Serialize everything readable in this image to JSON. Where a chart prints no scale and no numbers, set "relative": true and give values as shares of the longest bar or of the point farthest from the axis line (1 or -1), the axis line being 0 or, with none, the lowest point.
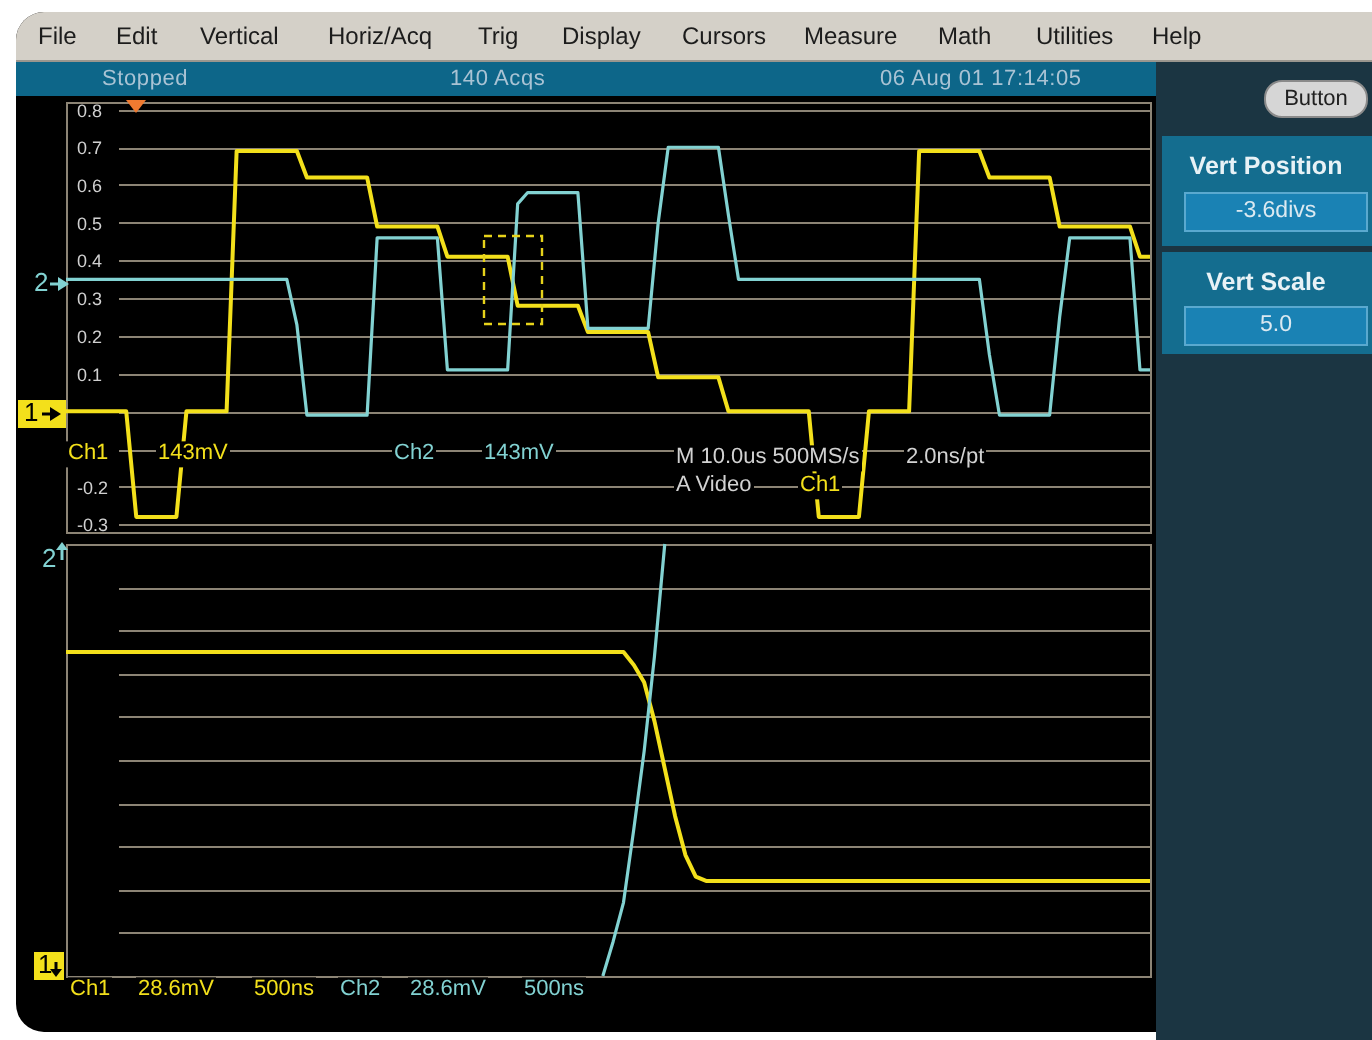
{
  "chart_data": [
    {
      "type": "line",
      "categories": [
        null,
        null,
        null,
        null,
        null,
        null,
        null,
        null,
        null,
        null,
        null,
        null,
        null,
        null,
        null,
        null,
        null,
        null,
        null,
        null,
        null,
        null,
        null,
        null,
        null,
        null,
        null,
        null,
        null,
        null,
        null,
        null,
        null,
        null,
        null,
        null,
        null,
        null,
        null,
        null,
        null,
        null,
        null,
        null,
        null,
        null,
        null,
        null,
        null,
        null,
        null,
        null,
        null,
        null,
        null,
        null,
        null,
        null,
        null,
        null,
        null,
        null,
        null,
        null,
        null,
        null,
        null,
        null,
        null,
        null,
        null,
        null,
        null,
        null,
        null,
        null,
        null,
        null,
        null,
        null,
        null,
        null,
        null,
        null,
        null,
        null,
        null,
        null,
        null,
        null,
        null,
        null,
        null,
        null,
        null,
        null,
        null,
        null,
        null,
        null,
        null,
        null,
        null,
        null,
        null,
        null,
        null,
        null,
        null
      ],
      "series": [
        {
          "name": "Ch1",
          "color": "#f3e01b",
          "values": [
            0,
            0,
            0,
            0,
            0,
            0,
            0,
            -0.28,
            -0.28,
            -0.28,
            -0.28,
            -0.28,
            0,
            0,
            0,
            0,
            0,
            0.69,
            0.69,
            0.69,
            0.69,
            0.69,
            0.69,
            0.69,
            0.62,
            0.62,
            0.62,
            0.62,
            0.62,
            0.62,
            0.62,
            0.49,
            0.49,
            0.49,
            0.49,
            0.49,
            0.49,
            0.49,
            0.41,
            0.41,
            0.41,
            0.41,
            0.41,
            0.41,
            0.41,
            0.28,
            0.28,
            0.28,
            0.28,
            0.28,
            0.28,
            0.28,
            0.21,
            0.21,
            0.21,
            0.21,
            0.21,
            0.21,
            0.21,
            0.09,
            0.09,
            0.09,
            0.09,
            0.09,
            0.09,
            0.09,
            0,
            0,
            0,
            0,
            0,
            0,
            0,
            0,
            0,
            -0.28,
            -0.28,
            -0.28,
            -0.28,
            -0.28,
            0,
            0,
            0,
            0,
            0,
            0.69,
            0.69,
            0.69,
            0.69,
            0.69,
            0.69,
            0.69,
            0.62,
            0.62,
            0.62,
            0.62,
            0.62,
            0.62,
            0.62,
            0.49,
            0.49,
            0.49,
            0.49,
            0.49,
            0.49,
            0.49,
            0.49,
            0.41,
            0.41
          ]
        },
        {
          "name": "Ch2",
          "color": "#82d2d2",
          "values": [
            0.35,
            0.35,
            0.35,
            0.35,
            0.35,
            0.35,
            0.35,
            0.35,
            0.35,
            0.35,
            0.35,
            0.35,
            0.35,
            0.35,
            0.35,
            0.35,
            0.35,
            0.35,
            0.35,
            0.35,
            0.35,
            0.35,
            0.35,
            0.23,
            -0.01,
            -0.01,
            -0.01,
            -0.01,
            -0.01,
            -0.01,
            -0.01,
            0.46,
            0.46,
            0.46,
            0.46,
            0.46,
            0.46,
            0.46,
            0.11,
            0.11,
            0.11,
            0.11,
            0.11,
            0.11,
            0.11,
            0.55,
            0.58,
            0.58,
            0.58,
            0.58,
            0.58,
            0.58,
            0.22,
            0.22,
            0.22,
            0.22,
            0.22,
            0.22,
            0.22,
            0.5,
            0.7,
            0.7,
            0.7,
            0.7,
            0.7,
            0.7,
            0.52,
            0.35,
            0.35,
            0.35,
            0.35,
            0.35,
            0.35,
            0.35,
            0.35,
            0.35,
            0.35,
            0.35,
            0.35,
            0.35,
            0.35,
            0.35,
            0.35,
            0.35,
            0.35,
            0.35,
            0.35,
            0.35,
            0.35,
            0.35,
            0.35,
            0.35,
            0.15,
            -0.01,
            -0.01,
            -0.01,
            -0.01,
            -0.01,
            -0.01,
            0.25,
            0.46,
            0.46,
            0.46,
            0.46,
            0.46,
            0.46,
            0.46,
            0.11,
            0.11
          ]
        }
      ],
      "ylim": [
        -0.32,
        0.82
      ],
      "yticks": [
        -0.3,
        -0.2,
        {
          "value": -0.1,
          "label": null
        },
        {
          "value": 0,
          "label": null
        },
        0.1,
        0.2,
        0.3,
        0.4,
        0.5,
        0.6,
        0.7,
        0.8
      ],
      "grid": "y",
      "annotations": [
        "File",
        "Edit",
        "Vertical",
        "Horiz/Acq",
        "Trig",
        "Display",
        "Cursors",
        "Measure",
        "Math",
        "Utilities",
        "Help",
        "Stopped",
        "140 Acqs",
        "06 Aug 01 17:14:05",
        "Button",
        "Vert Position",
        "-3.6divs",
        "Vert Scale",
        "5.0",
        "143mV",
        "143mV",
        "M 10.0us 500MS/s",
        "2.0ns/pt",
        "A Video",
        "Ch1",
        "2",
        "1"
      ]
    },
    {
      "type": "line",
      "relative": true,
      "categories": [
        null,
        null,
        null,
        null,
        null,
        null,
        null,
        null,
        null,
        null,
        null,
        null,
        null,
        null,
        null,
        null,
        null,
        null,
        null,
        null,
        null,
        null,
        null,
        null,
        null,
        null,
        null,
        null,
        null,
        null,
        null,
        null,
        null,
        null,
        null,
        null,
        null,
        null,
        null,
        null,
        null,
        null,
        null,
        null,
        null,
        null,
        null,
        null,
        null,
        null,
        null,
        null,
        null,
        null,
        null,
        null,
        null,
        null,
        null,
        null,
        null,
        null,
        null,
        null,
        null,
        null,
        null,
        null,
        null,
        null,
        null,
        null,
        null,
        null,
        null,
        null,
        null,
        null,
        null,
        null,
        null,
        null,
        null,
        null,
        null,
        null,
        null,
        null,
        null,
        null,
        null,
        null,
        null,
        null,
        null,
        null,
        null,
        null,
        null,
        null,
        null,
        null,
        null,
        null,
        null,
        null
      ],
      "series": [
        {
          "name": "Ch1",
          "color": "#f3e01b",
          "values": [
            0.75,
            0.75,
            0.75,
            0.75,
            0.75,
            0.75,
            0.75,
            0.75,
            0.75,
            0.75,
            0.75,
            0.75,
            0.75,
            0.75,
            0.75,
            0.75,
            0.75,
            0.75,
            0.75,
            0.75,
            0.75,
            0.75,
            0.75,
            0.75,
            0.75,
            0.75,
            0.75,
            0.75,
            0.75,
            0.75,
            0.75,
            0.75,
            0.75,
            0.75,
            0.75,
            0.75,
            0.75,
            0.75,
            0.75,
            0.75,
            0.75,
            0.75,
            0.75,
            0.75,
            0.75,
            0.75,
            0.75,
            0.75,
            0.75,
            0.75,
            0.75,
            0.75,
            0.75,
            0.75,
            0.75,
            0.72,
            0.68,
            0.59,
            0.48,
            0.37,
            0.28,
            0.23,
            0.22,
            0.22,
            0.22,
            0.22,
            0.22,
            0.22,
            0.22,
            0.22,
            0.22,
            0.22,
            0.22,
            0.22,
            0.22,
            0.22,
            0.22,
            0.22,
            0.22,
            0.22,
            0.22,
            0.22,
            0.22,
            0.22,
            0.22,
            0.22,
            0.22,
            0.22,
            0.22,
            0.22,
            0.22,
            0.22,
            0.22,
            0.22,
            0.22,
            0.22,
            0.22,
            0.22,
            0.22,
            0.22,
            0.22,
            0.22,
            0.22,
            0.22,
            0.22,
            0.22
          ]
        },
        {
          "name": "Ch2",
          "color": "#82d2d2",
          "values": [
            null,
            null,
            null,
            null,
            null,
            null,
            null,
            null,
            null,
            null,
            null,
            null,
            null,
            null,
            null,
            null,
            null,
            null,
            null,
            null,
            null,
            null,
            null,
            null,
            null,
            null,
            null,
            null,
            null,
            null,
            null,
            null,
            null,
            null,
            null,
            null,
            null,
            null,
            null,
            null,
            null,
            null,
            null,
            null,
            null,
            null,
            null,
            null,
            null,
            null,
            null,
            null,
            0,
            0.08,
            0.17,
            0.34,
            0.52,
            0.74,
            1,
            null,
            null,
            null,
            null,
            null,
            null,
            null,
            null,
            null,
            null,
            null,
            null,
            null,
            null,
            null,
            null,
            null,
            null,
            null,
            null,
            null,
            null,
            null,
            null,
            null,
            null,
            null,
            null,
            null,
            null,
            null,
            null,
            null,
            null,
            null,
            null,
            null,
            null,
            null,
            null,
            null,
            null,
            null,
            null,
            null,
            null,
            null
          ]
        }
      ],
      "grid": "y",
      "annotations": [
        "28.6mV",
        "500ns",
        "28.6mV",
        "500ns",
        "2",
        "1"
      ]
    }
  ]
}
